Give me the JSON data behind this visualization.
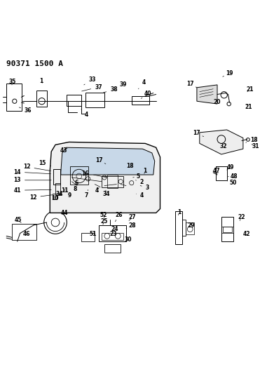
{
  "title": "90371 1500 A",
  "background_color": "#ffffff",
  "line_color": "#000000",
  "figsize": [
    3.91,
    5.33
  ],
  "dpi": 100
}
